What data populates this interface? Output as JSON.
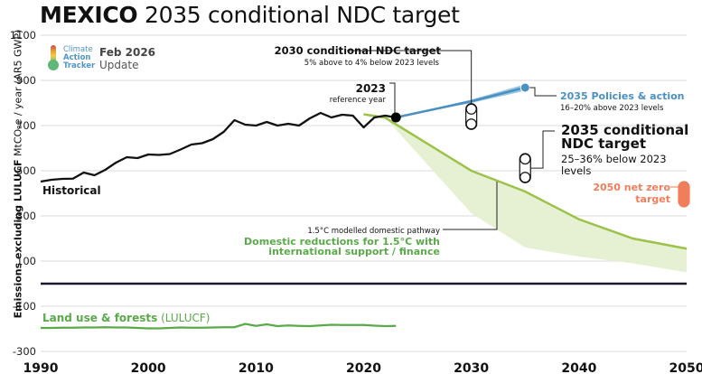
{
  "header": {
    "title_bold": "MEXICO",
    "title_rest": " 2035 conditional NDC target"
  },
  "logo": {
    "line1": "Climate",
    "line2": "Action",
    "line3": "Tracker",
    "date": "Feb 2026",
    "status": "Update"
  },
  "colors": {
    "historical": "#111111",
    "policies": "#4a90c0",
    "pathway": "#9cc24a",
    "pathway_fill": "#e3efcf",
    "lulucf": "#5aaa4a",
    "net_zero": "#f07e5a",
    "zero_line": "#1a1a2e",
    "grid": "#e2e2e2"
  },
  "chart_data": {
    "type": "line",
    "title": "MEXICO 2035 conditional NDC target",
    "xlabel": "",
    "ylabel_bold": "Emissions excluding LULUCF",
    "ylabel_rest": " MtCO₂e / year (AR5 GWP)",
    "xlim": [
      1990,
      2050
    ],
    "ylim": [
      -300,
      1100
    ],
    "xticks": [
      1990,
      2000,
      2010,
      2020,
      2030,
      2040,
      2050
    ],
    "yticks": [
      1100,
      900,
      700,
      500,
      300,
      100,
      -100,
      -300
    ],
    "grid": true,
    "series": [
      {
        "name": "Historical",
        "x": [
          1990,
          1991,
          1992,
          1993,
          1994,
          1995,
          1996,
          1997,
          1998,
          1999,
          2000,
          2001,
          2002,
          2003,
          2004,
          2005,
          2006,
          2007,
          2008,
          2009,
          2010,
          2011,
          2012,
          2013,
          2014,
          2015,
          2016,
          2017,
          2018,
          2019,
          2020,
          2021,
          2022,
          2023
        ],
        "values": [
          452,
          460,
          464,
          465,
          492,
          480,
          504,
          536,
          560,
          556,
          572,
          570,
          574,
          594,
          616,
          622,
          640,
          672,
          724,
          704,
          700,
          716,
          700,
          708,
          700,
          732,
          756,
          736,
          748,
          744,
          692,
          736,
          744,
          736
        ]
      },
      {
        "name": "2035 Policies & action",
        "x": [
          2023,
          2030,
          2035
        ],
        "upper": [
          736,
          815,
          883
        ],
        "lower": [
          736,
          800,
          854
        ]
      },
      {
        "name": "1.5°C modelled domestic pathway",
        "x": [
          2020,
          2022,
          2030,
          2035,
          2040,
          2045,
          2050
        ],
        "values": [
          750,
          735,
          500,
          408,
          285,
          200,
          155
        ]
      },
      {
        "name": "Domestic reductions for 1.5°C with international support / finance",
        "x": [
          2020,
          2022,
          2030,
          2035,
          2040,
          2045,
          2050
        ],
        "upper": [
          750,
          735,
          500,
          408,
          285,
          200,
          155
        ],
        "lower": [
          750,
          735,
          312,
          160,
          120,
          90,
          50
        ]
      },
      {
        "name": "Land use & forests (LULUCF)",
        "x": [
          1990,
          1991,
          1992,
          1993,
          1994,
          1995,
          1996,
          1997,
          1998,
          1999,
          2000,
          2001,
          2002,
          2003,
          2004,
          2005,
          2006,
          2007,
          2008,
          2009,
          2010,
          2011,
          2012,
          2013,
          2014,
          2015,
          2016,
          2017,
          2018,
          2019,
          2020,
          2021,
          2022,
          2023
        ],
        "values": [
          -196,
          -196,
          -195,
          -195,
          -194,
          -194,
          -193,
          -194,
          -194,
          -196,
          -198,
          -198,
          -196,
          -194,
          -195,
          -195,
          -194,
          -193,
          -193,
          -178,
          -187,
          -180,
          -188,
          -185,
          -187,
          -188,
          -185,
          -182,
          -183,
          -183,
          -183,
          -186,
          -188,
          -187
        ]
      }
    ],
    "markers": {
      "reference_2023": {
        "x": 2023,
        "value": 736,
        "label": "2023",
        "sublabel": "reference year"
      },
      "ndc_2030": {
        "x": 2030,
        "range": [
          707,
          773
        ],
        "label": "2030 conditional NDC target",
        "sublabel": "5% above to 4% below 2023 levels"
      },
      "policies_2035": {
        "x": 2035,
        "value": 868,
        "label": "2035 Policies & action",
        "sublabel": "16–20% above 2023 levels"
      },
      "ndc_2035": {
        "x": 2035,
        "range": [
          471,
          552
        ],
        "label1": "2035 conditional",
        "label2": "NDC target",
        "sub1": "25–36% below 2023",
        "sub2": "levels"
      },
      "net_zero_2050": {
        "x": 2050,
        "range": [
          364,
          428
        ],
        "label1": "2050 net zero",
        "label2": "target"
      }
    },
    "annotations": {
      "historical": "Historical",
      "pathway_label": "1.5°C modelled domestic pathway",
      "support_line1": "Domestic reductions for 1.5°C  with",
      "support_line2": "international support / finance",
      "lulucf_bold": "Land use & forests",
      "lulucf_rest": " (LULUCF)"
    }
  }
}
